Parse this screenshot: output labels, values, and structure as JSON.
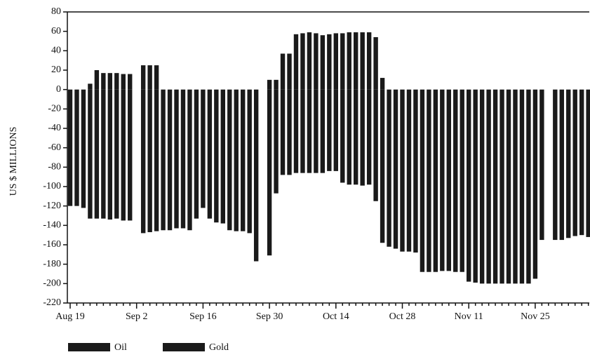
{
  "chart_data": {
    "type": "bar",
    "ylabel": "US $ MILLIONS",
    "ylim": [
      -220,
      80
    ],
    "yticks": [
      -220,
      -200,
      -180,
      -160,
      -140,
      -120,
      -100,
      -80,
      -60,
      -40,
      -20,
      0,
      20,
      40,
      60,
      80
    ],
    "categories": [
      "Aug 19",
      null,
      null,
      null,
      null,
      null,
      null,
      null,
      null,
      null,
      "Sep 2",
      null,
      null,
      null,
      null,
      null,
      null,
      null,
      null,
      null,
      "Sep 16",
      null,
      null,
      null,
      null,
      null,
      null,
      null,
      null,
      null,
      "Sep 30",
      null,
      null,
      null,
      null,
      null,
      null,
      null,
      null,
      null,
      "Oct 14",
      null,
      null,
      null,
      null,
      null,
      null,
      null,
      null,
      null,
      "Oct 28",
      null,
      null,
      null,
      null,
      null,
      null,
      null,
      null,
      null,
      "Nov 11",
      null,
      null,
      null,
      null,
      null,
      null,
      null,
      null,
      null,
      "Nov 25",
      null,
      null,
      null,
      null,
      null,
      null,
      null,
      null
    ],
    "series": [
      {
        "name": "Oil",
        "color": "#1a1a1a",
        "values": [
          -120,
          -120,
          -122,
          -133,
          -133,
          -133,
          -134,
          -133,
          -135,
          -135,
          null,
          -148,
          -147,
          -146,
          -145,
          -145,
          -143,
          -143,
          -145,
          -133,
          -122,
          -133,
          -137,
          -138,
          -145,
          -146,
          -146,
          -148,
          -177,
          null,
          -171,
          -107,
          -88,
          -88,
          -86,
          -86,
          -86,
          -86,
          -86,
          -84,
          -84,
          -96,
          -98,
          -98,
          -99,
          -98,
          -115,
          -158,
          -162,
          -164,
          -167,
          -167,
          -168,
          -188,
          -188,
          -188,
          -187,
          -187,
          -188,
          -188,
          -198,
          -199,
          -200,
          -200,
          -200,
          -200,
          -200,
          -200,
          -200,
          -200,
          -195,
          -155,
          null,
          -155,
          -155,
          -153,
          -151,
          -150,
          -152
        ]
      },
      {
        "name": "Gold",
        "color": "#1a1a1a",
        "values": [
          0,
          0,
          0,
          6,
          20,
          17,
          17,
          17,
          16,
          16,
          null,
          25,
          25,
          25,
          0,
          0,
          0,
          0,
          0,
          0,
          0,
          0,
          0,
          0,
          0,
          0,
          0,
          0,
          0,
          null,
          10,
          10,
          37,
          37,
          57,
          58,
          59,
          58,
          56,
          57,
          58,
          58,
          59,
          59,
          59,
          59,
          54,
          12,
          0,
          0,
          0,
          0,
          0,
          0,
          0,
          0,
          0,
          0,
          0,
          0,
          0,
          0,
          0,
          0,
          0,
          0,
          0,
          0,
          0,
          0,
          0,
          0,
          null,
          0,
          0,
          0,
          0,
          0,
          0
        ]
      }
    ]
  }
}
